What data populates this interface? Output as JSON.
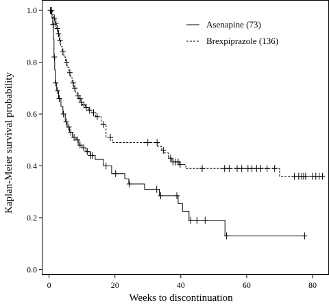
{
  "chart_data": {
    "type": "line",
    "xlabel": "Weeks to discontinuation",
    "ylabel": "Kaplan-Meier survival probability",
    "xlim": [
      -2,
      85
    ],
    "ylim": [
      -0.02,
      1.04
    ],
    "xticks": [
      0,
      20,
      40,
      60,
      80
    ],
    "yticks": [
      0.0,
      0.2,
      0.4,
      0.6,
      0.8,
      1.0
    ],
    "ytick_labels": [
      "0.0",
      "0.2",
      "0.4",
      "0.6",
      "0.8",
      "1.0"
    ],
    "legend_position": "top-right",
    "series": [
      {
        "name": "Asenapine (73)",
        "line_style": "solid",
        "steps": [
          [
            0,
            1.0
          ],
          [
            0.6,
            0.986
          ],
          [
            0.9,
            0.972
          ],
          [
            1.1,
            0.945
          ],
          [
            1.3,
            0.89
          ],
          [
            1.5,
            0.82
          ],
          [
            1.7,
            0.77
          ],
          [
            1.9,
            0.72
          ],
          [
            2.3,
            0.69
          ],
          [
            2.9,
            0.66
          ],
          [
            3.6,
            0.63
          ],
          [
            4.2,
            0.6
          ],
          [
            4.9,
            0.57
          ],
          [
            5.5,
            0.55
          ],
          [
            6.2,
            0.53
          ],
          [
            7.1,
            0.51
          ],
          [
            8.2,
            0.5
          ],
          [
            9.0,
            0.48
          ],
          [
            10.0,
            0.47
          ],
          [
            11.2,
            0.455
          ],
          [
            12.5,
            0.44
          ],
          [
            14.0,
            0.425
          ],
          [
            16.5,
            0.4
          ],
          [
            19.0,
            0.37
          ],
          [
            23.0,
            0.35
          ],
          [
            24.2,
            0.33
          ],
          [
            29.0,
            0.31
          ],
          [
            33.5,
            0.285
          ],
          [
            39.2,
            0.255
          ],
          [
            40.5,
            0.225
          ],
          [
            42.5,
            0.19
          ],
          [
            44.0,
            0.19
          ],
          [
            53.4,
            0.13
          ],
          [
            78.0,
            0.13
          ]
        ],
        "censor_times": [
          0.4,
          1.2,
          1.6,
          2.0,
          2.6,
          3.1,
          4.4,
          5.2,
          6.0,
          6.6,
          7.6,
          8.6,
          9.4,
          10.5,
          11.6,
          12.6,
          13.1,
          17.3,
          20.2,
          24.4,
          32.7,
          33.9,
          38.8,
          43.0,
          44.9,
          47.4,
          53.9,
          77.6
        ]
      },
      {
        "name": "Brexpiprazole (136)",
        "line_style": "dashed",
        "steps": [
          [
            0,
            1.0
          ],
          [
            1.0,
            0.985
          ],
          [
            1.4,
            0.97
          ],
          [
            1.8,
            0.95
          ],
          [
            2.2,
            0.93
          ],
          [
            2.6,
            0.91
          ],
          [
            3.1,
            0.885
          ],
          [
            3.5,
            0.86
          ],
          [
            4.0,
            0.84
          ],
          [
            4.5,
            0.82
          ],
          [
            5.0,
            0.8
          ],
          [
            5.5,
            0.78
          ],
          [
            6.0,
            0.76
          ],
          [
            6.5,
            0.74
          ],
          [
            7.0,
            0.72
          ],
          [
            7.5,
            0.7
          ],
          [
            8.0,
            0.685
          ],
          [
            8.5,
            0.67
          ],
          [
            9.0,
            0.66
          ],
          [
            9.5,
            0.645
          ],
          [
            10.2,
            0.635
          ],
          [
            11.0,
            0.625
          ],
          [
            12.0,
            0.615
          ],
          [
            13.0,
            0.605
          ],
          [
            14.2,
            0.59
          ],
          [
            15.8,
            0.56
          ],
          [
            17.3,
            0.51
          ],
          [
            19.2,
            0.49
          ],
          [
            31.0,
            0.49
          ],
          [
            33.0,
            0.475
          ],
          [
            34.2,
            0.46
          ],
          [
            35.0,
            0.45
          ],
          [
            36.2,
            0.43
          ],
          [
            37.3,
            0.415
          ],
          [
            39.5,
            0.405
          ],
          [
            41.5,
            0.39
          ],
          [
            69.0,
            0.39
          ],
          [
            70.0,
            0.36
          ],
          [
            83.0,
            0.36
          ]
        ],
        "censor_times": [
          0.8,
          1.6,
          2.1,
          2.5,
          2.9,
          3.3,
          4.2,
          5.3,
          6.3,
          7.3,
          7.8,
          8.8,
          9.4,
          9.8,
          10.6,
          11.3,
          12.3,
          13.5,
          14.6,
          16.5,
          18.6,
          30.0,
          32.8,
          34.7,
          36.9,
          37.6,
          38.4,
          39.2,
          39.8,
          46.5,
          53.3,
          54.7,
          57.1,
          58.5,
          60.4,
          61.6,
          63.0,
          64.3,
          66.2,
          68.5,
          74.5,
          75.8,
          76.7,
          77.3,
          77.9,
          80.0,
          81.0,
          82.0,
          83.0
        ]
      }
    ]
  }
}
